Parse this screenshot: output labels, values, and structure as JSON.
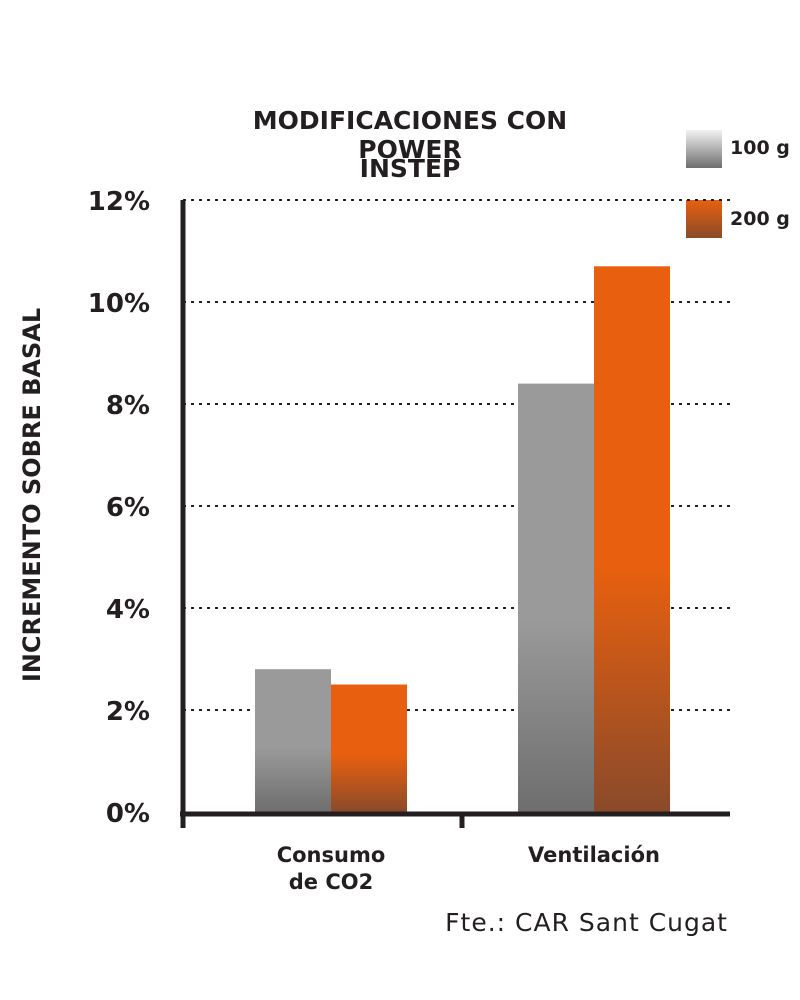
{
  "chart_data": {
    "type": "bar",
    "title_lines": [
      "MODIFICACIONES CON POWER",
      "INSTEP"
    ],
    "ylabel": "INCREMENTO SOBRE BASAL",
    "xlabel": "",
    "ylim": [
      0,
      12
    ],
    "yticks": [
      "0%",
      "2%",
      "4%",
      "6%",
      "8%",
      "10%",
      "12%"
    ],
    "categories": [
      {
        "lines": [
          "Consumo",
          "de CO2"
        ]
      },
      {
        "lines": [
          "Ventilación"
        ]
      }
    ],
    "series": [
      {
        "name": "100 g",
        "values": [
          2.8,
          8.4
        ],
        "color": "#9a9a9a",
        "color_dark": "#6e6e6e"
      },
      {
        "name": "200 g",
        "values": [
          2.5,
          10.7
        ],
        "color": "#e8600f",
        "color_dark": "#8a4a2a"
      }
    ],
    "grid": true,
    "grid_style": "dotted",
    "legend_position": "top-right",
    "source": "Fte.: CAR Sant Cugat"
  }
}
